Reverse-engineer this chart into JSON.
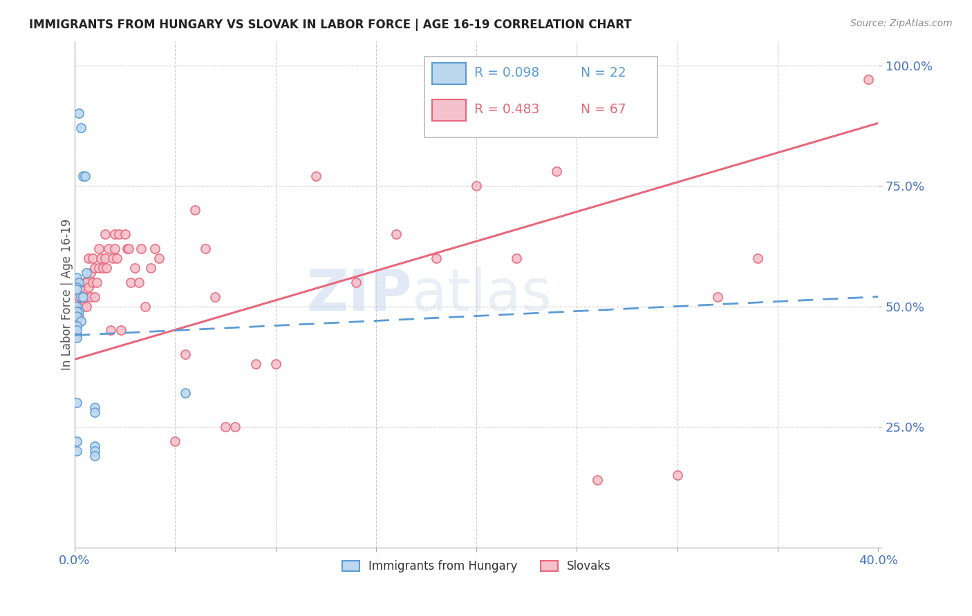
{
  "title": "IMMIGRANTS FROM HUNGARY VS SLOVAK IN LABOR FORCE | AGE 16-19 CORRELATION CHART",
  "source": "Source: ZipAtlas.com",
  "ylabel": "In Labor Force | Age 16-19",
  "xlim": [
    0.0,
    0.4
  ],
  "ylim": [
    0.0,
    1.05
  ],
  "ytick_vals": [
    0.0,
    0.25,
    0.5,
    0.75,
    1.0
  ],
  "ytick_labels": [
    "",
    "25.0%",
    "50.0%",
    "75.0%",
    "100.0%"
  ],
  "xtick_vals": [
    0.0,
    0.05,
    0.1,
    0.15,
    0.2,
    0.25,
    0.3,
    0.35,
    0.4
  ],
  "xtick_labels": [
    "0.0%",
    "",
    "",
    "",
    "",
    "",
    "",
    "",
    "40.0%"
  ],
  "hungary_color": "#5b9bd5",
  "hungary_fill": "#bdd7ee",
  "slovak_color": "#e8677a",
  "slovak_fill": "#f4c2cc",
  "watermark_zip": "ZIP",
  "watermark_atlas": "atlas",
  "hungary_x": [
    0.002,
    0.003,
    0.004,
    0.005,
    0.006,
    0.001,
    0.002,
    0.001,
    0.001,
    0.003,
    0.004,
    0.001,
    0.002,
    0.001,
    0.001,
    0.003,
    0.001,
    0.001,
    0.001,
    0.001,
    0.001,
    0.001,
    0.055,
    0.01,
    0.01,
    0.01,
    0.01,
    0.01
  ],
  "hungary_y": [
    0.9,
    0.87,
    0.77,
    0.77,
    0.57,
    0.56,
    0.55,
    0.54,
    0.535,
    0.52,
    0.52,
    0.5,
    0.49,
    0.49,
    0.48,
    0.47,
    0.46,
    0.45,
    0.435,
    0.3,
    0.22,
    0.2,
    0.32,
    0.29,
    0.28,
    0.21,
    0.2,
    0.19
  ],
  "slovak_x": [
    0.001,
    0.001,
    0.002,
    0.002,
    0.003,
    0.003,
    0.004,
    0.005,
    0.005,
    0.006,
    0.006,
    0.007,
    0.007,
    0.008,
    0.008,
    0.009,
    0.009,
    0.01,
    0.01,
    0.011,
    0.012,
    0.012,
    0.013,
    0.014,
    0.015,
    0.015,
    0.016,
    0.017,
    0.018,
    0.019,
    0.02,
    0.02,
    0.021,
    0.022,
    0.023,
    0.025,
    0.026,
    0.027,
    0.028,
    0.03,
    0.032,
    0.033,
    0.035,
    0.038,
    0.04,
    0.042,
    0.05,
    0.055,
    0.06,
    0.065,
    0.07,
    0.075,
    0.08,
    0.09,
    0.1,
    0.12,
    0.14,
    0.16,
    0.18,
    0.2,
    0.22,
    0.24,
    0.26,
    0.3,
    0.32,
    0.34,
    0.395
  ],
  "slovak_y": [
    0.44,
    0.47,
    0.48,
    0.52,
    0.5,
    0.54,
    0.5,
    0.52,
    0.55,
    0.5,
    0.55,
    0.54,
    0.6,
    0.52,
    0.57,
    0.55,
    0.6,
    0.52,
    0.58,
    0.55,
    0.58,
    0.62,
    0.6,
    0.58,
    0.6,
    0.65,
    0.58,
    0.62,
    0.45,
    0.6,
    0.62,
    0.65,
    0.6,
    0.65,
    0.45,
    0.65,
    0.62,
    0.62,
    0.55,
    0.58,
    0.55,
    0.62,
    0.5,
    0.58,
    0.62,
    0.6,
    0.22,
    0.4,
    0.7,
    0.62,
    0.52,
    0.25,
    0.25,
    0.38,
    0.38,
    0.77,
    0.55,
    0.65,
    0.6,
    0.75,
    0.6,
    0.78,
    0.14,
    0.15,
    0.52,
    0.6,
    0.97
  ],
  "hungary_line_x": [
    0.0,
    0.4
  ],
  "hungary_line_y": [
    0.44,
    0.52
  ],
  "slovak_line_x": [
    0.0,
    0.4
  ],
  "slovak_line_y": [
    0.39,
    0.88
  ]
}
